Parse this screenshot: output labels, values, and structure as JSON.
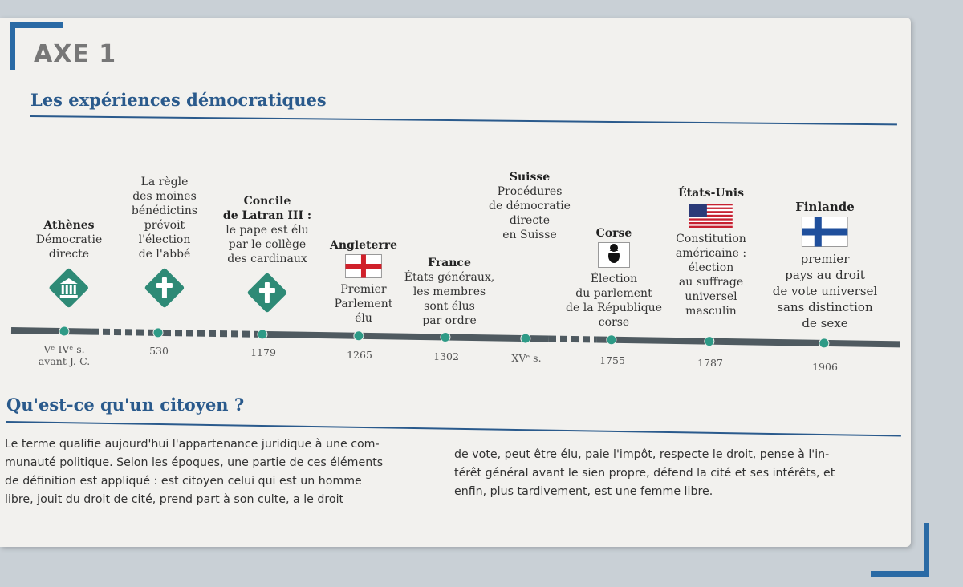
{
  "header": {
    "axe": "AXE 1",
    "section": "Les expériences démocratiques"
  },
  "colors": {
    "accent": "#2a5a8c",
    "icon_green": "#2e8a76",
    "timeline": "#4f5a60"
  },
  "events": [
    {
      "heading": "Athènes",
      "lines": [
        "Démocratie",
        "directe"
      ],
      "icon": "temple-icon",
      "date": "Vᵉ-IVᵉ s.",
      "date2": "avant J.-C."
    },
    {
      "heading": "",
      "lines": [
        "La règle",
        "des moines",
        "bénédictins",
        "prévoit",
        "l'élection",
        "de l'abbé"
      ],
      "icon": "cross-icon",
      "date": "530"
    },
    {
      "heading": "Concile",
      "heading2": "de Latran III :",
      "lines": [
        "le pape est élu",
        "par le collège",
        "des cardinaux"
      ],
      "icon": "cross-icon",
      "date": "1179"
    },
    {
      "heading": "Angleterre",
      "lines": [
        "Premier",
        "Parlement",
        "élu"
      ],
      "icon": "england-flag-icon",
      "date": "1265"
    },
    {
      "heading": "France",
      "lines": [
        "États généraux,",
        "les membres",
        "sont élus",
        "par ordre"
      ],
      "date": "1302"
    },
    {
      "heading": "Suisse",
      "lines": [
        "Procédures",
        "de démocratie",
        "directe",
        "en Suisse"
      ],
      "date": "XVᵉ s."
    },
    {
      "heading": "Corse",
      "lines": [
        "Élection",
        "du parlement",
        "de la République",
        "corse"
      ],
      "icon": "corsica-flag-icon",
      "date": "1755"
    },
    {
      "heading": "États-Unis",
      "lines": [
        "Constitution",
        "américaine :",
        "élection",
        "au suffrage",
        "universel",
        "masculin"
      ],
      "icon": "usa-flag-icon",
      "date": "1787"
    },
    {
      "heading": "Finlande",
      "lines": [
        "premier",
        "pays au droit",
        "de vote universel",
        "sans distinction",
        "de sexe"
      ],
      "icon": "finland-flag-icon",
      "date": "1906"
    }
  ],
  "question": {
    "title": "Qu'est-ce qu'un citoyen ?",
    "col1": [
      "Le terme qualifie aujourd'hui l'appartenance juridique à une com-",
      "munauté politique. Selon les époques, une partie de ces éléments",
      "de définition est appliqué : est citoyen celui qui est un homme",
      "libre, jouit du droit de cité, prend part à son culte, a le droit"
    ],
    "col2": [
      "de vote, peut être élu, paie l'impôt, respecte le droit, pense à l'in-",
      "térêt général avant le sien propre, défend la cité et ses intérêts, et",
      "enfin, plus tardivement, est une femme libre."
    ]
  }
}
